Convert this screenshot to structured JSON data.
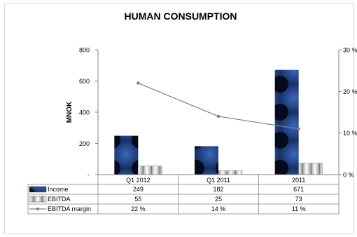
{
  "chart_data": {
    "type": "bar",
    "title": "HUMAN CONSUMPTION",
    "ylabel": "MNOK",
    "ylim": [
      0,
      800
    ],
    "y_ticks": [
      "-",
      "200",
      "400",
      "600",
      "800"
    ],
    "y2lim": [
      0,
      30
    ],
    "y2_ticks": [
      "0 %",
      "10 %",
      "20 %",
      "30 %"
    ],
    "categories": [
      "Q1 2012",
      "Q1 2011",
      "2011"
    ],
    "series": [
      {
        "name": "Income",
        "kind": "bar",
        "values": [
          249,
          182,
          671
        ],
        "labels": [
          "249",
          "182",
          "671"
        ],
        "color": "#1f3a78"
      },
      {
        "name": "EBITDA",
        "kind": "bar",
        "values": [
          55,
          25,
          73
        ],
        "labels": [
          "55",
          "25",
          "73"
        ],
        "color": "#c8c8c8"
      },
      {
        "name": "EBITDA margin",
        "kind": "line",
        "axis": "right",
        "values": [
          22,
          14,
          11
        ],
        "labels": [
          "22 %",
          "14 %",
          "11 %"
        ],
        "color": "#7f7f7f"
      }
    ],
    "grid": false,
    "legend": "data-table"
  }
}
